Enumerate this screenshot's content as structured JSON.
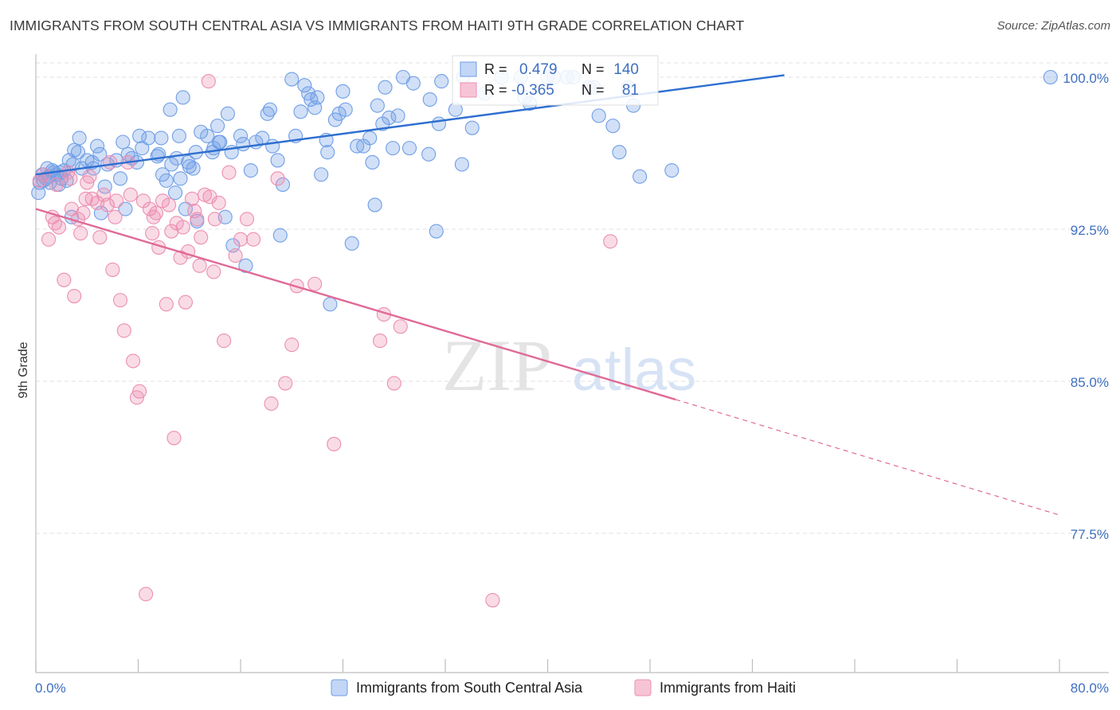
{
  "title": "IMMIGRANTS FROM SOUTH CENTRAL ASIA VS IMMIGRANTS FROM HAITI 9TH GRADE CORRELATION CHART",
  "source": "Source: ZipAtlas.com",
  "watermark": {
    "zip": "ZIP",
    "atlas": "atlas"
  },
  "colors": {
    "blue": "#6f9ee6",
    "blue_line": "#2e6fd0",
    "pink": "#ec8fb0",
    "pink_line": "#e06a97",
    "axis_text": "#3f6fc0",
    "grid": "#e2e2e2"
  },
  "legend": {
    "r_label": "R =",
    "n_label": "N =",
    "series1": {
      "r": "0.479",
      "n": "140"
    },
    "series2": {
      "r": "-0.365",
      "n": "81"
    }
  },
  "chart_data": {
    "type": "scatter",
    "xlabel": "",
    "ylabel": "9th Grade",
    "xlim": [
      0,
      80
    ],
    "ylim": [
      71.5,
      101.5
    ],
    "x_ticks_labeled": [
      {
        "v": 0,
        "label": "0.0%"
      },
      {
        "v": 80,
        "label": "80.0%"
      }
    ],
    "x_minor_ticks": [
      0,
      8,
      16,
      24,
      32,
      40,
      48,
      56,
      64,
      72,
      80
    ],
    "y_ticks": [
      {
        "v": 100,
        "label": "100.0%"
      },
      {
        "v": 92.5,
        "label": "92.5%"
      },
      {
        "v": 85,
        "label": "85.0%"
      },
      {
        "v": 77.5,
        "label": "77.5%"
      }
    ],
    "series": [
      {
        "name": "Immigrants from South Central Asia",
        "trend": {
          "x0": 0,
          "y0": 95.2,
          "x1": 58.5,
          "y1": 100.1,
          "dashed_to": null
        },
        "points": [
          [
            0.2,
            94.3
          ],
          [
            0.5,
            95.2
          ],
          [
            0.6,
            94.9
          ],
          [
            0.9,
            95.5
          ],
          [
            1.0,
            95.1
          ],
          [
            1.1,
            94.8
          ],
          [
            1.4,
            95.3
          ],
          [
            1.6,
            95.2
          ],
          [
            1.8,
            94.7
          ],
          [
            2.0,
            95.0
          ],
          [
            2.2,
            95.4
          ],
          [
            2.6,
            95.9
          ],
          [
            2.8,
            93.1
          ],
          [
            2.9,
            95.7
          ],
          [
            3.3,
            96.3
          ],
          [
            3.4,
            97.0
          ],
          [
            3.6,
            95.5
          ],
          [
            4.0,
            95.9
          ],
          [
            4.4,
            95.8
          ],
          [
            4.8,
            96.6
          ],
          [
            5.0,
            96.2
          ],
          [
            5.4,
            94.6
          ],
          [
            5.6,
            95.7
          ],
          [
            6.3,
            95.9
          ],
          [
            6.8,
            96.8
          ],
          [
            7.2,
            96.2
          ],
          [
            7.5,
            96.0
          ],
          [
            8.1,
            97.1
          ],
          [
            8.3,
            96.5
          ],
          [
            8.8,
            97.0
          ],
          [
            9.6,
            96.2
          ],
          [
            9.8,
            97.0
          ],
          [
            10.2,
            94.9
          ],
          [
            10.5,
            98.4
          ],
          [
            10.6,
            95.7
          ],
          [
            11.0,
            96.0
          ],
          [
            11.2,
            97.1
          ],
          [
            11.3,
            95.0
          ],
          [
            11.9,
            95.8
          ],
          [
            12.3,
            95.5
          ],
          [
            12.5,
            96.3
          ],
          [
            12.9,
            97.3
          ],
          [
            13.4,
            97.1
          ],
          [
            13.9,
            96.5
          ],
          [
            14.2,
            97.6
          ],
          [
            14.3,
            96.8
          ],
          [
            14.4,
            96.8
          ],
          [
            15.0,
            98.2
          ],
          [
            15.3,
            96.3
          ],
          [
            16.0,
            97.1
          ],
          [
            16.2,
            96.7
          ],
          [
            16.8,
            95.4
          ],
          [
            17.2,
            96.8
          ],
          [
            17.7,
            97.0
          ],
          [
            18.1,
            98.2
          ],
          [
            18.3,
            98.4
          ],
          [
            18.9,
            95.9
          ],
          [
            19.3,
            94.7
          ],
          [
            20.0,
            99.9
          ],
          [
            20.3,
            97.1
          ],
          [
            20.7,
            98.3
          ],
          [
            21.3,
            99.2
          ],
          [
            21.5,
            98.9
          ],
          [
            21.8,
            98.5
          ],
          [
            22.3,
            95.2
          ],
          [
            22.7,
            96.9
          ],
          [
            22.8,
            96.3
          ],
          [
            23.4,
            97.9
          ],
          [
            23.7,
            98.2
          ],
          [
            24.0,
            99.3
          ],
          [
            24.2,
            98.4
          ],
          [
            25.6,
            96.6
          ],
          [
            26.1,
            97.0
          ],
          [
            26.3,
            95.8
          ],
          [
            26.7,
            98.6
          ],
          [
            27.1,
            97.7
          ],
          [
            27.3,
            99.5
          ],
          [
            27.6,
            98.0
          ],
          [
            28.3,
            98.1
          ],
          [
            28.7,
            100.0
          ],
          [
            29.2,
            96.5
          ],
          [
            29.5,
            99.7
          ],
          [
            30.8,
            98.9
          ],
          [
            31.5,
            97.7
          ],
          [
            31.7,
            99.8
          ],
          [
            32.8,
            98.4
          ],
          [
            33.3,
            95.7
          ],
          [
            33.4,
            100.0
          ],
          [
            34.1,
            97.5
          ],
          [
            35.1,
            99.2
          ],
          [
            36.4,
            100.0
          ],
          [
            37.9,
            100.0
          ],
          [
            38.2,
            99.0
          ],
          [
            38.6,
            98.7
          ],
          [
            40.0,
            100.0
          ],
          [
            40.5,
            100.0
          ],
          [
            41.5,
            100.0
          ],
          [
            42.0,
            100.0
          ],
          [
            43.2,
            99.5
          ],
          [
            43.6,
            99.5
          ],
          [
            44.0,
            98.1
          ],
          [
            45.1,
            97.6
          ],
          [
            45.6,
            96.3
          ],
          [
            46.3,
            99.5
          ],
          [
            46.7,
            98.6
          ],
          [
            47.2,
            95.1
          ],
          [
            49.7,
            95.4
          ],
          [
            79.3,
            100.0
          ],
          [
            11.5,
            99.0
          ],
          [
            22.0,
            99.0
          ],
          [
            19.1,
            92.2
          ],
          [
            26.5,
            93.7
          ],
          [
            27.9,
            96.5
          ],
          [
            24.7,
            91.8
          ],
          [
            15.4,
            91.7
          ],
          [
            16.4,
            90.7
          ],
          [
            23.0,
            88.8
          ],
          [
            31.3,
            92.4
          ],
          [
            11.7,
            93.5
          ],
          [
            9.9,
            95.2
          ],
          [
            7.9,
            95.8
          ],
          [
            12.6,
            92.9
          ],
          [
            14.8,
            93.1
          ],
          [
            30.7,
            96.2
          ],
          [
            25.1,
            96.6
          ],
          [
            18.5,
            96.6
          ],
          [
            21.0,
            99.6
          ],
          [
            13.8,
            96.3
          ],
          [
            12.0,
            95.6
          ],
          [
            9.5,
            96.1
          ],
          [
            6.6,
            95.0
          ],
          [
            4.5,
            95.5
          ],
          [
            3.0,
            96.4
          ],
          [
            2.4,
            94.9
          ],
          [
            1.9,
            95.3
          ],
          [
            1.3,
            95.4
          ],
          [
            0.8,
            95.0
          ],
          [
            0.3,
            94.8
          ],
          [
            5.1,
            93.3
          ],
          [
            7.0,
            93.5
          ],
          [
            10.9,
            94.3
          ]
        ]
      },
      {
        "name": "Immigrants from Haiti",
        "trend": {
          "x0": 0,
          "y0": 93.5,
          "x1": 50.0,
          "y1": 84.1,
          "dashed_to": {
            "x": 80,
            "y": 78.4
          }
        },
        "points": [
          [
            0.3,
            94.9
          ],
          [
            0.6,
            95.2
          ],
          [
            1.0,
            92.0
          ],
          [
            1.3,
            93.1
          ],
          [
            1.5,
            92.8
          ],
          [
            1.8,
            92.6
          ],
          [
            2.2,
            90.0
          ],
          [
            2.5,
            95.3
          ],
          [
            2.8,
            93.5
          ],
          [
            3.0,
            89.2
          ],
          [
            3.3,
            93.0
          ],
          [
            3.5,
            92.3
          ],
          [
            3.9,
            94.0
          ],
          [
            4.2,
            95.1
          ],
          [
            4.4,
            94.0
          ],
          [
            4.8,
            93.8
          ],
          [
            5.0,
            92.1
          ],
          [
            5.3,
            94.2
          ],
          [
            5.6,
            93.7
          ],
          [
            6.0,
            90.5
          ],
          [
            6.3,
            93.9
          ],
          [
            6.6,
            89.0
          ],
          [
            6.9,
            87.5
          ],
          [
            7.2,
            95.8
          ],
          [
            7.6,
            86.0
          ],
          [
            7.9,
            84.2
          ],
          [
            8.1,
            84.5
          ],
          [
            8.4,
            93.9
          ],
          [
            8.9,
            93.5
          ],
          [
            9.1,
            92.3
          ],
          [
            9.4,
            93.3
          ],
          [
            9.6,
            91.6
          ],
          [
            9.9,
            93.9
          ],
          [
            10.2,
            88.8
          ],
          [
            10.6,
            92.4
          ],
          [
            10.8,
            82.2
          ],
          [
            11.0,
            92.8
          ],
          [
            11.3,
            91.1
          ],
          [
            11.7,
            88.9
          ],
          [
            11.9,
            91.4
          ],
          [
            12.2,
            94.0
          ],
          [
            12.4,
            93.4
          ],
          [
            12.6,
            93.0
          ],
          [
            12.8,
            90.7
          ],
          [
            13.2,
            94.2
          ],
          [
            13.6,
            94.1
          ],
          [
            13.9,
            90.4
          ],
          [
            14.3,
            93.8
          ],
          [
            14.7,
            87.0
          ],
          [
            15.1,
            95.3
          ],
          [
            15.6,
            91.2
          ],
          [
            16.0,
            92.0
          ],
          [
            16.5,
            93.0
          ],
          [
            17.0,
            92.0
          ],
          [
            18.4,
            83.9
          ],
          [
            18.9,
            95.0
          ],
          [
            19.5,
            84.9
          ],
          [
            20.0,
            86.8
          ],
          [
            20.4,
            89.7
          ],
          [
            21.8,
            89.8
          ],
          [
            23.3,
            81.9
          ],
          [
            26.9,
            87.0
          ],
          [
            27.2,
            88.3
          ],
          [
            28.0,
            84.9
          ],
          [
            28.5,
            87.7
          ],
          [
            35.7,
            74.2
          ],
          [
            44.9,
            91.9
          ],
          [
            8.6,
            74.5
          ],
          [
            13.5,
            99.8
          ],
          [
            5.8,
            95.8
          ],
          [
            4.0,
            94.8
          ],
          [
            2.7,
            95.0
          ],
          [
            1.6,
            94.7
          ],
          [
            7.4,
            94.2
          ],
          [
            10.4,
            93.7
          ],
          [
            11.5,
            92.6
          ],
          [
            14.0,
            93.0
          ],
          [
            9.2,
            93.1
          ],
          [
            6.2,
            93.1
          ],
          [
            3.7,
            93.3
          ],
          [
            12.9,
            92.1
          ]
        ]
      }
    ]
  },
  "x_axis": {
    "left_label": "0.0%",
    "right_label": "80.0%"
  }
}
